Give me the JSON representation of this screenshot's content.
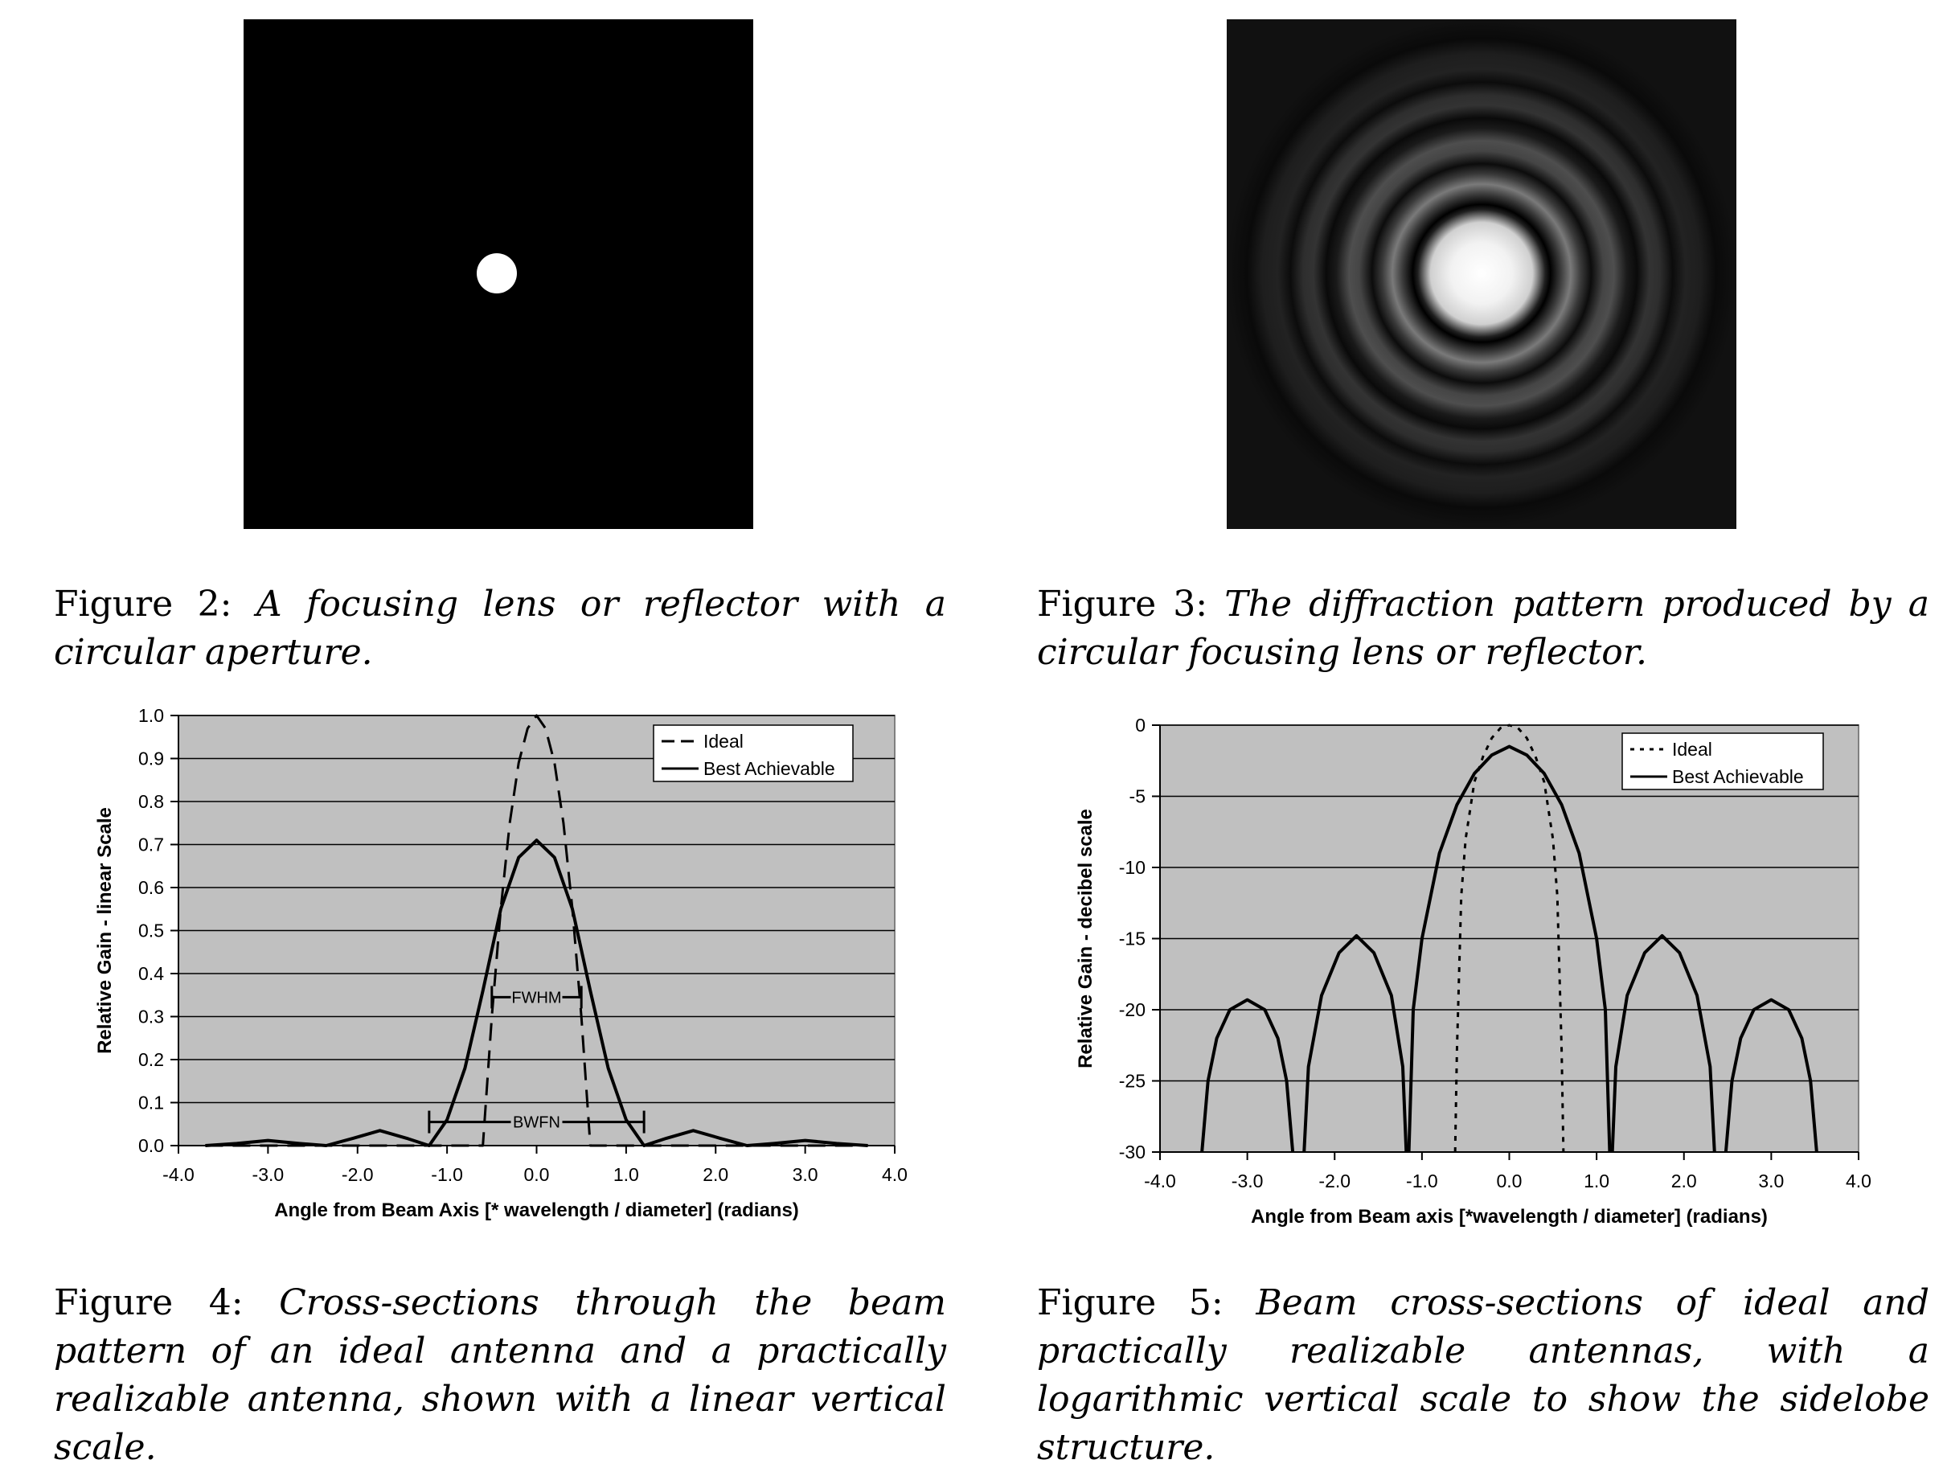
{
  "figures": {
    "fig2": {
      "label": "Figure 2:",
      "caption": "A focusing lens or reflector with a circular aperture."
    },
    "fig3": {
      "label": "Figure 3:",
      "caption": "The diffraction pattern produced by a circular focusing lens or reflector."
    },
    "fig4": {
      "label": "Figure 4:",
      "caption": "Cross-sections through the beam pattern of an ideal antenna and a practically realizable antenna, shown with a linear vertical scale."
    },
    "fig5": {
      "label": "Figure 5:",
      "caption": "Beam cross-sections of ideal and practically realizable antennas, with a logarithmic vertical scale to show the sidelobe structure."
    }
  },
  "colors": {
    "plot_bg": "#c0c0c0",
    "image_bg": "#000000",
    "spot": "#ffffff"
  },
  "chart_data": [
    {
      "type": "line",
      "xlabel": "Angle from Beam Axis [* wavelength / diameter] (radians)",
      "ylabel": "Relative Gain - linear Scale",
      "xlim": [
        -4.0,
        4.0
      ],
      "ylim": [
        0.0,
        1.0
      ],
      "x_ticks": [
        "-4.0",
        "-3.0",
        "-2.0",
        "-1.0",
        "0.0",
        "1.0",
        "2.0",
        "3.0",
        "4.0"
      ],
      "y_ticks": [
        "0.0",
        "0.1",
        "0.2",
        "0.3",
        "0.4",
        "0.5",
        "0.6",
        "0.7",
        "0.8",
        "0.9",
        "1.0"
      ],
      "grid": true,
      "legend_position": "top-right",
      "series": [
        {
          "name": "Ideal",
          "style": "dashed",
          "x": [
            -3.7,
            -3.0,
            -1.5,
            -0.6,
            -0.5,
            -0.4,
            -0.3,
            -0.2,
            -0.1,
            0.0,
            0.1,
            0.2,
            0.3,
            0.4,
            0.5,
            0.6,
            1.5,
            3.0,
            3.7
          ],
          "y": [
            0.0,
            0.0,
            0.0,
            0.0,
            0.3,
            0.55,
            0.75,
            0.89,
            0.97,
            1.0,
            0.97,
            0.89,
            0.75,
            0.55,
            0.3,
            0.0,
            0.0,
            0.0,
            0.0
          ]
        },
        {
          "name": "Best Achievable",
          "style": "solid",
          "x": [
            -3.7,
            -3.35,
            -3.0,
            -2.65,
            -2.35,
            -2.05,
            -1.75,
            -1.45,
            -1.2,
            -1.0,
            -0.8,
            -0.6,
            -0.4,
            -0.2,
            0.0,
            0.2,
            0.4,
            0.6,
            0.8,
            1.0,
            1.2,
            1.45,
            1.75,
            2.05,
            2.35,
            2.65,
            3.0,
            3.35,
            3.7
          ],
          "y": [
            0.0,
            0.005,
            0.012,
            0.005,
            0.0,
            0.017,
            0.035,
            0.017,
            0.0,
            0.06,
            0.18,
            0.36,
            0.55,
            0.67,
            0.71,
            0.67,
            0.55,
            0.36,
            0.18,
            0.06,
            0.0,
            0.017,
            0.035,
            0.017,
            0.0,
            0.005,
            0.012,
            0.005,
            0.0
          ]
        }
      ],
      "annotations": [
        {
          "text": "FWHM",
          "y": 0.345,
          "x_span": [
            -0.5,
            0.5
          ]
        },
        {
          "text": "BWFN",
          "y": 0.055,
          "x_span": [
            -1.2,
            1.2
          ]
        }
      ]
    },
    {
      "type": "line",
      "xlabel": "Angle from Beam axis [*wavelength / diameter] (radians)",
      "ylabel": "Relative Gain - decibel scale",
      "xlim": [
        -4.0,
        4.0
      ],
      "ylim": [
        -30,
        0
      ],
      "x_ticks": [
        "-4.0",
        "-3.0",
        "-2.0",
        "-1.0",
        "0.0",
        "1.0",
        "2.0",
        "3.0",
        "4.0"
      ],
      "y_ticks": [
        "0",
        "-5",
        "-10",
        "-15",
        "-20",
        "-25",
        "-30"
      ],
      "grid": true,
      "legend_position": "top-right",
      "series": [
        {
          "name": "Ideal",
          "style": "dotted",
          "x": [
            -0.62,
            -0.6,
            -0.55,
            -0.5,
            -0.4,
            -0.3,
            -0.2,
            -0.1,
            0.0,
            0.1,
            0.2,
            0.3,
            0.4,
            0.5,
            0.55,
            0.6,
            0.62
          ],
          "y": [
            -30,
            -23,
            -12,
            -8,
            -4,
            -2.2,
            -0.9,
            -0.2,
            0,
            -0.2,
            -0.9,
            -2.2,
            -4,
            -8,
            -12,
            -23,
            -30
          ]
        },
        {
          "name": "Best Achievable",
          "style": "solid",
          "segments": [
            {
              "x": [
                -3.52,
                -3.45,
                -3.35,
                -3.2,
                -3.0,
                -2.8,
                -2.65,
                -2.55,
                -2.48
              ],
              "y": [
                -30,
                -25,
                -22,
                -20,
                -19.3,
                -20,
                -22,
                -25,
                -30
              ]
            },
            {
              "x": [
                -2.35,
                -2.3,
                -2.15,
                -1.95,
                -1.75,
                -1.55,
                -1.35,
                -1.22,
                -1.18
              ],
              "y": [
                -30,
                -24,
                -19,
                -16,
                -14.8,
                -16,
                -19,
                -24,
                -30
              ]
            },
            {
              "x": [
                -1.15,
                -1.1,
                -1.0,
                -0.8,
                -0.6,
                -0.4,
                -0.2,
                0.0,
                0.2,
                0.4,
                0.6,
                0.8,
                1.0,
                1.1,
                1.15
              ],
              "y": [
                -30,
                -20,
                -15,
                -9,
                -5.6,
                -3.4,
                -2.1,
                -1.5,
                -2.1,
                -3.4,
                -5.6,
                -9,
                -15,
                -20,
                -30
              ]
            },
            {
              "x": [
                1.18,
                1.22,
                1.35,
                1.55,
                1.75,
                1.95,
                2.15,
                2.3,
                2.35
              ],
              "y": [
                -30,
                -24,
                -19,
                -16,
                -14.8,
                -16,
                -19,
                -24,
                -30
              ]
            },
            {
              "x": [
                2.48,
                2.55,
                2.65,
                2.8,
                3.0,
                3.2,
                3.35,
                3.45,
                3.52
              ],
              "y": [
                -30,
                -25,
                -22,
                -20,
                -19.3,
                -20,
                -22,
                -25,
                -30
              ]
            }
          ]
        }
      ]
    }
  ]
}
